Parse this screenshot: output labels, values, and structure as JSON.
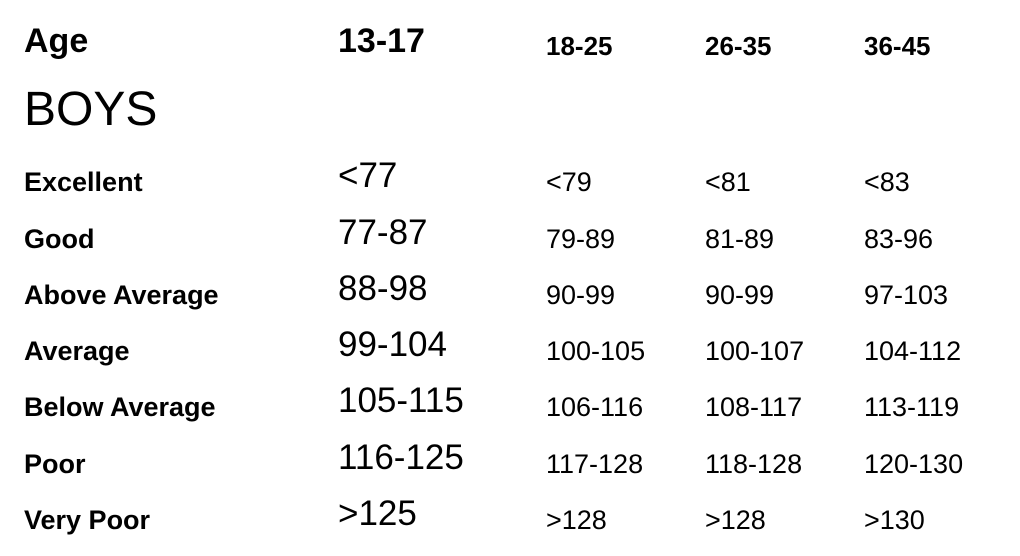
{
  "header": {
    "age_label": "Age",
    "columns": [
      "13-17",
      "18-25",
      "26-35",
      "36-45"
    ]
  },
  "section_title": "BOYS",
  "rows": [
    {
      "label": "Excellent",
      "values": [
        "<77",
        "<79",
        "<81",
        "<83"
      ]
    },
    {
      "label": "Good",
      "values": [
        "77-87",
        "79-89",
        "81-89",
        "83-96"
      ]
    },
    {
      "label": "Above Average",
      "values": [
        "88-98",
        "90-99",
        "90-99",
        "97-103"
      ]
    },
    {
      "label": "Average",
      "values": [
        "99-104",
        "100-105",
        "100-107",
        "104-112"
      ]
    },
    {
      "label": "Below Average",
      "values": [
        "105-115",
        "106-116",
        "108-117",
        "113-119"
      ]
    },
    {
      "label": "Poor",
      "values": [
        "116-125",
        "117-128",
        "118-128",
        "120-130"
      ]
    },
    {
      "label": "Very Poor",
      "values": [
        ">125",
        ">128",
        ">128",
        ">130"
      ]
    }
  ]
}
